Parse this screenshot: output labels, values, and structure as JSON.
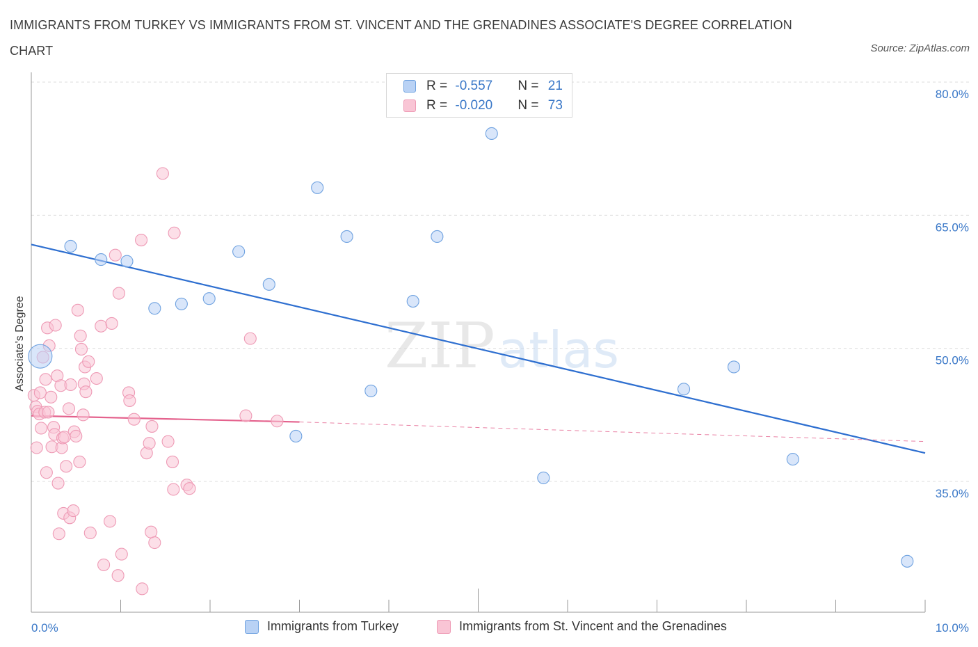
{
  "title": "IMMIGRANTS FROM TURKEY VS IMMIGRANTS FROM ST. VINCENT AND THE GRENADINES ASSOCIATE'S DEGREE CORRELATION CHART",
  "source": "Source: ZipAtlas.com",
  "watermark": {
    "part1": "ZIP",
    "part2": "atlas"
  },
  "legend_top": [
    {
      "r_label": "R = ",
      "r_value": "-0.557",
      "n_label": "N = ",
      "n_value": "21",
      "color": "#b9d2f5"
    },
    {
      "r_label": "R = ",
      "r_value": "-0.020",
      "n_label": "N = ",
      "n_value": "73",
      "color": "#f9c5d5"
    }
  ],
  "bottom_legend": [
    {
      "label": "Immigrants from Turkey",
      "color": "#b9d2f5"
    },
    {
      "label": "Immigrants from St. Vincent and the Grenadines",
      "color": "#f9c5d5"
    }
  ],
  "chart_data": {
    "type": "scatter",
    "title": "IMMIGRANTS FROM TURKEY VS IMMIGRANTS FROM ST. VINCENT AND THE GRENADINES ASSOCIATE'S DEGREE CORRELATION CHART",
    "xlabel": "",
    "ylabel": "Associate's Degree",
    "x_tick_labels": [
      "0.0%",
      "10.0%"
    ],
    "y_tick_labels": [
      "80.0%",
      "65.0%",
      "50.0%",
      "35.0%"
    ],
    "y_ticks": [
      80,
      65,
      50,
      35
    ],
    "xlim": [
      0,
      10
    ],
    "ylim": [
      22,
      82
    ],
    "grid": true,
    "legend_position": "top-center",
    "series": [
      {
        "name": "Immigrants from Turkey",
        "color": "#6fa2e0",
        "fill": "#b9d2f5",
        "trend": {
          "x": [
            0,
            10
          ],
          "y": [
            61.7,
            38.2
          ],
          "style": "solid",
          "color": "#2e6fd0"
        },
        "points": [
          {
            "x": 0.1,
            "y": 49.1,
            "big": true
          },
          {
            "x": 0.44,
            "y": 61.5
          },
          {
            "x": 0.78,
            "y": 60.0
          },
          {
            "x": 1.07,
            "y": 59.8
          },
          {
            "x": 1.38,
            "y": 54.5
          },
          {
            "x": 1.68,
            "y": 55.0
          },
          {
            "x": 1.99,
            "y": 55.6
          },
          {
            "x": 2.32,
            "y": 60.9
          },
          {
            "x": 2.66,
            "y": 57.2
          },
          {
            "x": 3.2,
            "y": 68.1
          },
          {
            "x": 2.96,
            "y": 40.1
          },
          {
            "x": 3.53,
            "y": 62.6
          },
          {
            "x": 3.8,
            "y": 45.2
          },
          {
            "x": 4.27,
            "y": 55.3
          },
          {
            "x": 4.54,
            "y": 62.6
          },
          {
            "x": 5.15,
            "y": 74.2
          },
          {
            "x": 5.73,
            "y": 35.4
          },
          {
            "x": 7.3,
            "y": 45.4
          },
          {
            "x": 7.86,
            "y": 47.9
          },
          {
            "x": 8.52,
            "y": 37.5
          },
          {
            "x": 9.8,
            "y": 26.0
          }
        ]
      },
      {
        "name": "Immigrants from St. Vincent and the Grenadines",
        "color": "#ee9ab5",
        "fill": "#f9c5d5",
        "trend": {
          "x": [
            0,
            3.0
          ],
          "y": [
            42.4,
            41.7
          ],
          "style": "solid",
          "color": "#e4628d",
          "extended": {
            "x": [
              3.0,
              10
            ],
            "y": [
              41.7,
              39.5
            ],
            "style": "dashed"
          }
        },
        "points": [
          {
            "x": 0.03,
            "y": 44.7
          },
          {
            "x": 0.05,
            "y": 43.4
          },
          {
            "x": 0.06,
            "y": 38.8
          },
          {
            "x": 0.07,
            "y": 42.9
          },
          {
            "x": 0.09,
            "y": 42.6
          },
          {
            "x": 0.1,
            "y": 45.0
          },
          {
            "x": 0.11,
            "y": 41.0
          },
          {
            "x": 0.13,
            "y": 49.0
          },
          {
            "x": 0.15,
            "y": 42.8
          },
          {
            "x": 0.16,
            "y": 46.5
          },
          {
            "x": 0.17,
            "y": 36.0
          },
          {
            "x": 0.18,
            "y": 52.3
          },
          {
            "x": 0.19,
            "y": 42.8
          },
          {
            "x": 0.2,
            "y": 50.3
          },
          {
            "x": 0.22,
            "y": 44.5
          },
          {
            "x": 0.23,
            "y": 38.9
          },
          {
            "x": 0.25,
            "y": 41.1
          },
          {
            "x": 0.26,
            "y": 40.3
          },
          {
            "x": 0.27,
            "y": 52.6
          },
          {
            "x": 0.29,
            "y": 46.9
          },
          {
            "x": 0.3,
            "y": 34.8
          },
          {
            "x": 0.31,
            "y": 29.1
          },
          {
            "x": 0.33,
            "y": 45.8
          },
          {
            "x": 0.34,
            "y": 38.8
          },
          {
            "x": 0.35,
            "y": 39.9
          },
          {
            "x": 0.36,
            "y": 31.4
          },
          {
            "x": 0.39,
            "y": 36.7
          },
          {
            "x": 0.42,
            "y": 43.2
          },
          {
            "x": 0.43,
            "y": 30.9
          },
          {
            "x": 0.44,
            "y": 45.9
          },
          {
            "x": 0.47,
            "y": 31.7
          },
          {
            "x": 0.48,
            "y": 40.6
          },
          {
            "x": 0.5,
            "y": 40.1
          },
          {
            "x": 0.52,
            "y": 54.3
          },
          {
            "x": 0.54,
            "y": 37.2
          },
          {
            "x": 0.55,
            "y": 51.4
          },
          {
            "x": 0.56,
            "y": 49.9
          },
          {
            "x": 0.58,
            "y": 42.5
          },
          {
            "x": 0.59,
            "y": 46.0
          },
          {
            "x": 0.6,
            "y": 47.9
          },
          {
            "x": 0.61,
            "y": 45.1
          },
          {
            "x": 0.64,
            "y": 48.5
          },
          {
            "x": 0.66,
            "y": 29.2
          },
          {
            "x": 0.73,
            "y": 46.6
          },
          {
            "x": 0.78,
            "y": 52.5
          },
          {
            "x": 0.81,
            "y": 25.6
          },
          {
            "x": 0.88,
            "y": 30.5
          },
          {
            "x": 0.9,
            "y": 52.8
          },
          {
            "x": 0.94,
            "y": 60.5
          },
          {
            "x": 0.97,
            "y": 24.4
          },
          {
            "x": 0.98,
            "y": 56.2
          },
          {
            "x": 1.01,
            "y": 26.8
          },
          {
            "x": 1.09,
            "y": 45.0
          },
          {
            "x": 1.1,
            "y": 44.1
          },
          {
            "x": 1.15,
            "y": 42.0
          },
          {
            "x": 1.23,
            "y": 62.2
          },
          {
            "x": 1.24,
            "y": 22.9
          },
          {
            "x": 1.29,
            "y": 38.2
          },
          {
            "x": 1.32,
            "y": 39.3
          },
          {
            "x": 1.35,
            "y": 41.2
          },
          {
            "x": 1.34,
            "y": 29.3
          },
          {
            "x": 1.38,
            "y": 28.1
          },
          {
            "x": 1.47,
            "y": 69.7
          },
          {
            "x": 1.53,
            "y": 39.5
          },
          {
            "x": 1.58,
            "y": 37.2
          },
          {
            "x": 1.59,
            "y": 34.1
          },
          {
            "x": 1.6,
            "y": 63.0
          },
          {
            "x": 1.74,
            "y": 34.6
          },
          {
            "x": 1.77,
            "y": 34.2
          },
          {
            "x": 2.4,
            "y": 42.4
          },
          {
            "x": 2.45,
            "y": 51.1
          },
          {
            "x": 2.75,
            "y": 41.8
          },
          {
            "x": 0.37,
            "y": 40.0
          }
        ]
      }
    ]
  }
}
